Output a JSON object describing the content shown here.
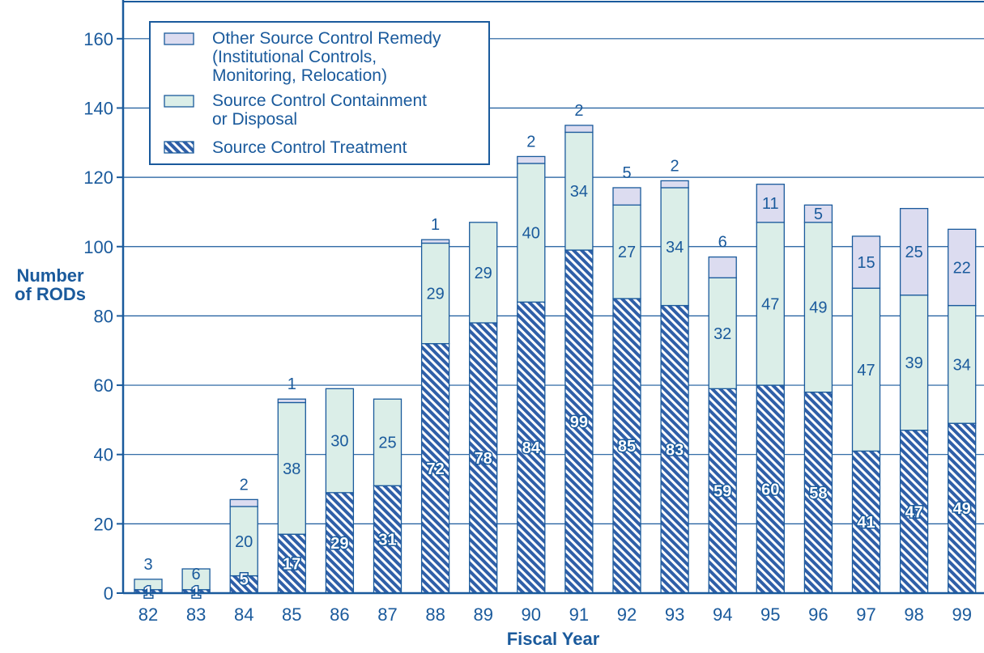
{
  "chart_data": {
    "type": "bar",
    "stacked": true,
    "categories": [
      "82",
      "83",
      "84",
      "85",
      "86",
      "87",
      "88",
      "89",
      "90",
      "91",
      "92",
      "93",
      "94",
      "95",
      "96",
      "97",
      "98",
      "99"
    ],
    "series": [
      {
        "name": "Source Control Treatment",
        "values": [
          1,
          1,
          5,
          17,
          29,
          31,
          72,
          78,
          84,
          99,
          85,
          83,
          59,
          60,
          58,
          41,
          47,
          49
        ]
      },
      {
        "name": "Source Control Containment or Disposal",
        "values": [
          3,
          6,
          20,
          38,
          30,
          25,
          29,
          29,
          40,
          34,
          27,
          34,
          32,
          47,
          49,
          47,
          39,
          34
        ]
      },
      {
        "name": "Other Source Control Remedy (Institutional Controls, Monitoring, Relocation)",
        "values": [
          0,
          0,
          2,
          1,
          0,
          0,
          1,
          0,
          2,
          2,
          5,
          2,
          6,
          11,
          5,
          15,
          25,
          22
        ]
      }
    ],
    "segment_labels": {
      "treatment": [
        "1",
        "1",
        "5",
        "17",
        "29",
        "31",
        "72",
        "78",
        "84",
        "99",
        "85",
        "83",
        "59",
        "60",
        "58",
        "41",
        "47",
        "49"
      ],
      "containment": [
        "",
        "6",
        "20",
        "38",
        "30",
        "25",
        "29",
        "29",
        "40",
        "34",
        "27",
        "34",
        "32",
        "47",
        "49",
        "47",
        "39",
        "34"
      ],
      "other": [
        "3",
        "",
        "2",
        "1",
        "",
        "",
        "1",
        "",
        "2",
        "2",
        "5",
        "2",
        "6",
        "11",
        "5",
        "15",
        "25",
        "22"
      ]
    },
    "yticks": [
      "0",
      "20",
      "40",
      "60",
      "80",
      "100",
      "120",
      "140",
      "160"
    ],
    "ylim": [
      0,
      170
    ],
    "xlabel": "Fiscal Year",
    "ylabel_lines": [
      "Number",
      "of RODs"
    ],
    "legend": [
      {
        "lines": [
          "Other Source Control Remedy",
          "(Institutional Controls,",
          "Monitoring, Relocation)"
        ]
      },
      {
        "lines": [
          "Source Control Containment",
          "or Disposal"
        ]
      },
      {
        "lines": [
          "Source Control Treatment"
        ]
      }
    ],
    "grid": true,
    "legend_position": "top-left",
    "colors": {
      "axis": "#1a5a9c",
      "treatment": "#2f5fa8",
      "containment": "#dbeee8",
      "other": "#dcdcf0"
    }
  }
}
